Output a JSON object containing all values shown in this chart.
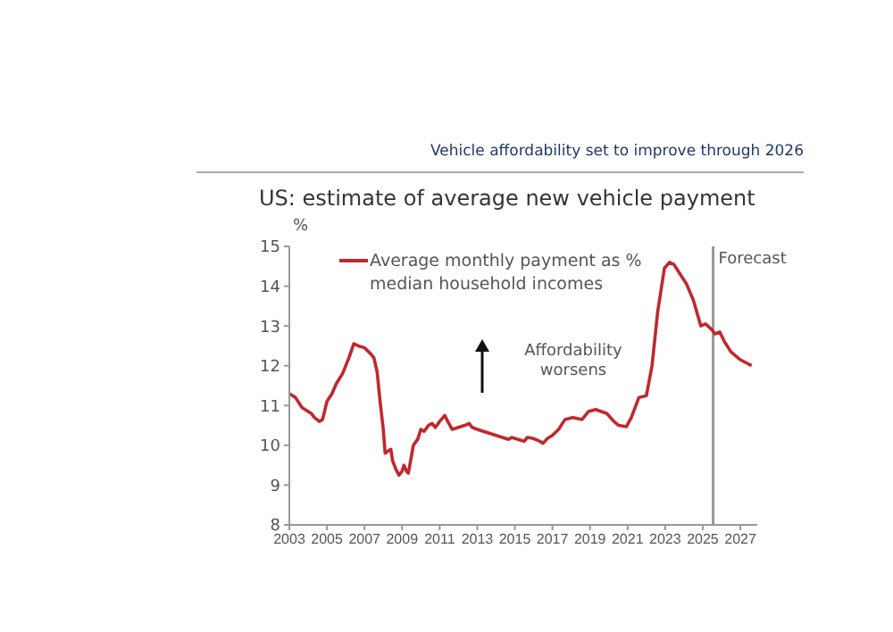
{
  "chart_data": {
    "type": "line",
    "title": "Vehicle affordability set to improve through 2026",
    "subtitle": "US: estimate of average new vehicle payment",
    "ylabel": "%",
    "x": [
      2003.0,
      2003.33,
      2003.67,
      2004.17,
      2004.33,
      2004.6,
      2004.77,
      2005.0,
      2005.27,
      2005.5,
      2005.83,
      2006.17,
      2006.43,
      2006.67,
      2007.0,
      2007.33,
      2007.5,
      2007.67,
      2007.83,
      2008.0,
      2008.1,
      2008.23,
      2008.4,
      2008.5,
      2008.67,
      2008.83,
      2009.0,
      2009.1,
      2009.23,
      2009.33,
      2009.43,
      2009.6,
      2009.83,
      2010.0,
      2010.17,
      2010.4,
      2010.6,
      2010.77,
      2011.0,
      2011.27,
      2011.43,
      2011.67,
      2012.0,
      2012.33,
      2012.57,
      2012.73,
      2013.0,
      2013.33,
      2013.67,
      2014.0,
      2014.33,
      2014.67,
      2014.83,
      2015.17,
      2015.5,
      2015.67,
      2016.0,
      2016.33,
      2016.5,
      2016.73,
      2017.0,
      2017.33,
      2017.67,
      2018.08,
      2018.58,
      2018.92,
      2019.3,
      2019.9,
      2020.27,
      2020.53,
      2020.94,
      2021.2,
      2021.6,
      2022.0,
      2022.3,
      2022.6,
      2022.96,
      2023.23,
      2023.46,
      2023.8,
      2024.14,
      2024.5,
      2024.9,
      2025.15,
      2025.5,
      2025.65,
      2025.9,
      2026.16,
      2026.5,
      2027.0,
      2027.6
    ],
    "series": [
      {
        "name": "Average monthly payment as % median household incomes",
        "color": "#c0282d",
        "values": [
          11.3,
          11.2,
          10.95,
          10.8,
          10.7,
          10.6,
          10.65,
          11.1,
          11.3,
          11.55,
          11.8,
          12.2,
          12.55,
          12.5,
          12.45,
          12.3,
          12.2,
          11.85,
          11.1,
          10.4,
          9.8,
          9.85,
          9.9,
          9.6,
          9.4,
          9.25,
          9.35,
          9.5,
          9.35,
          9.3,
          9.55,
          10.0,
          10.15,
          10.4,
          10.35,
          10.5,
          10.55,
          10.45,
          10.6,
          10.75,
          10.6,
          10.4,
          10.45,
          10.5,
          10.55,
          10.45,
          10.4,
          10.35,
          10.3,
          10.25,
          10.2,
          10.15,
          10.2,
          10.15,
          10.1,
          10.2,
          10.17,
          10.1,
          10.05,
          10.17,
          10.25,
          10.4,
          10.65,
          10.7,
          10.65,
          10.85,
          10.9,
          10.8,
          10.6,
          10.5,
          10.47,
          10.7,
          11.2,
          11.25,
          12.0,
          13.35,
          14.45,
          14.6,
          14.55,
          14.3,
          14.05,
          13.65,
          13.0,
          13.05,
          12.9,
          12.8,
          12.85,
          12.6,
          12.35,
          12.15,
          12.0
        ]
      }
    ],
    "xlim": [
      2003,
      2027.9
    ],
    "xticks": [
      2003,
      2005,
      2007,
      2009,
      2011,
      2013,
      2015,
      2017,
      2019,
      2021,
      2023,
      2025,
      2027
    ],
    "ylim": [
      8,
      15
    ],
    "yticks": [
      8,
      9,
      10,
      11,
      12,
      13,
      14,
      15
    ],
    "grid": false,
    "legend": "top left",
    "marker": "none",
    "line_style": "solid",
    "ref_lines": [
      {
        "axis": "x",
        "value": 2025.55,
        "label": "Forecast",
        "color": "#999999"
      }
    ],
    "annotations": [
      "Affordability worsens"
    ]
  }
}
